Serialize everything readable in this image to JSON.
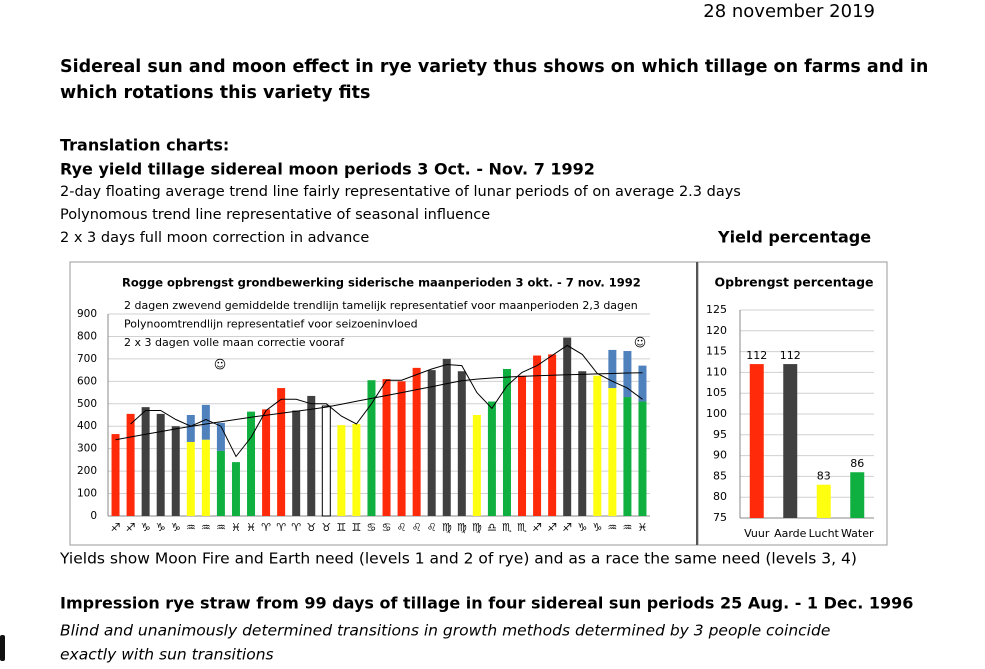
{
  "date": "28 november 2019",
  "heading": [
    "Sidereal sun and moon effect in rye variety thus shows on which tillage on farms and in",
    "which rotations this variety fits"
  ],
  "translation_label": "Translation charts:",
  "chart_heading": "Rye yield tillage sidereal moon periods 3 Oct. - Nov. 7 1992",
  "notes": [
    "2-day floating average trend line fairly representative of lunar periods of on average 2.3 days",
    "Polynomous trend line representative of seasonal influence",
    "2 x 3 days full moon correction in advance"
  ],
  "yield_label": "Yield percentage",
  "chart_data": [
    {
      "type": "bar",
      "title": "Rogge opbrengst grondbewerking siderische maanperioden 3 okt. - 7 nov. 1992",
      "annotations": [
        "2 dagen zwevend gemiddelde trendlijn tamelijk representatief voor maanperioden 2,3 dagen",
        "Polynoomtrendlijn representatief voor seizoeninvloed",
        "2 x 3 dagen volle maan correctie vooraf"
      ],
      "marks": [
        "☺",
        "☺"
      ],
      "categories": [
        "♐",
        "♐",
        "♑",
        "♑",
        "♑",
        "♒",
        "♒",
        "♒",
        "♓",
        "♓",
        "♈",
        "♈",
        "♈",
        "♉",
        "♉",
        "♊",
        "♊",
        "♋",
        "♋",
        "♌",
        "♌",
        "♌",
        "♍",
        "♍",
        "♍",
        "♎",
        "♏",
        "♏",
        "♐",
        "♐",
        "♐",
        "♑",
        "♑",
        "♒",
        "♒",
        "♓"
      ],
      "values": [
        365,
        455,
        485,
        455,
        400,
        330,
        340,
        290,
        240,
        465,
        475,
        570,
        470,
        535,
        490,
        405,
        410,
        605,
        610,
        600,
        660,
        650,
        700,
        645,
        450,
        510,
        655,
        625,
        715,
        720,
        795,
        645,
        625,
        570,
        530,
        510
      ],
      "colors": [
        "#ff2a0a",
        "#ff2a0a",
        "#404040",
        "#404040",
        "#404040",
        "#ffff10",
        "#ffff10",
        "#10b040",
        "#10b040",
        "#10b040",
        "#ff2a0a",
        "#ff2a0a",
        "#404040",
        "#404040",
        "#ffffff",
        "#ffff10",
        "#ffff10",
        "#10b040",
        "#ff2a0a",
        "#ff2a0a",
        "#ff2a0a",
        "#404040",
        "#404040",
        "#404040",
        "#ffff10",
        "#10b040",
        "#10b040",
        "#ff2a0a",
        "#ff2a0a",
        "#ff2a0a",
        "#404040",
        "#404040",
        "#ffff10",
        "#ffff10",
        "#10b040",
        "#10b040"
      ],
      "correction": {
        "color": "#4f81bd",
        "values": [
          null,
          null,
          null,
          null,
          null,
          120,
          155,
          125,
          null,
          null,
          null,
          null,
          null,
          null,
          null,
          null,
          null,
          null,
          null,
          null,
          null,
          null,
          null,
          null,
          null,
          null,
          null,
          null,
          null,
          null,
          null,
          null,
          null,
          170,
          205,
          160
        ]
      },
      "lines": [
        {
          "color": "#000000",
          "values": [
            null,
            410,
            470,
            470,
            430,
            400,
            430,
            400,
            265,
            350,
            470,
            520,
            520,
            500,
            500,
            445,
            410,
            500,
            605,
            605,
            630,
            655,
            675,
            670,
            550,
            480,
            580,
            640,
            670,
            715,
            760,
            720,
            635,
            600,
            570,
            520
          ]
        },
        {
          "color": "#000000",
          "values": [
            340,
            352,
            364,
            376,
            388,
            399,
            410,
            420,
            430,
            440,
            449,
            458,
            467,
            476,
            485,
            498,
            511,
            524,
            537,
            550,
            563,
            576,
            590,
            603,
            610,
            615,
            619,
            622,
            625,
            627,
            629,
            631,
            633,
            635,
            637,
            638
          ]
        }
      ],
      "ylim": [
        0,
        900
      ],
      "yticks": [
        0,
        100,
        200,
        300,
        400,
        500,
        600,
        700,
        800,
        900
      ],
      "grid": true
    },
    {
      "type": "bar",
      "title": "Opbrengst percentage",
      "categories": [
        "Vuur",
        "Aarde",
        "Lucht",
        "Water"
      ],
      "values": [
        112,
        112,
        83,
        86
      ],
      "colors": [
        "#ff2a0a",
        "#404040",
        "#ffff10",
        "#10b040"
      ],
      "ylim": [
        75,
        125
      ],
      "yticks": [
        75,
        80,
        85,
        90,
        95,
        100,
        105,
        110,
        115,
        120,
        125
      ],
      "grid": true
    }
  ],
  "caption": "Yields show Moon Fire and Earth need (levels 1 and 2 of rye) and as a race the same need (levels 3, 4)",
  "section_heading": "Impression rye straw from 99 days of tillage in four sidereal sun periods 25 Aug. - 1 Dec. 1996",
  "section_text": [
    "Blind and unanimously determined transitions in growth methods determined by 3 people coincide",
    "exactly with sun transitions"
  ]
}
